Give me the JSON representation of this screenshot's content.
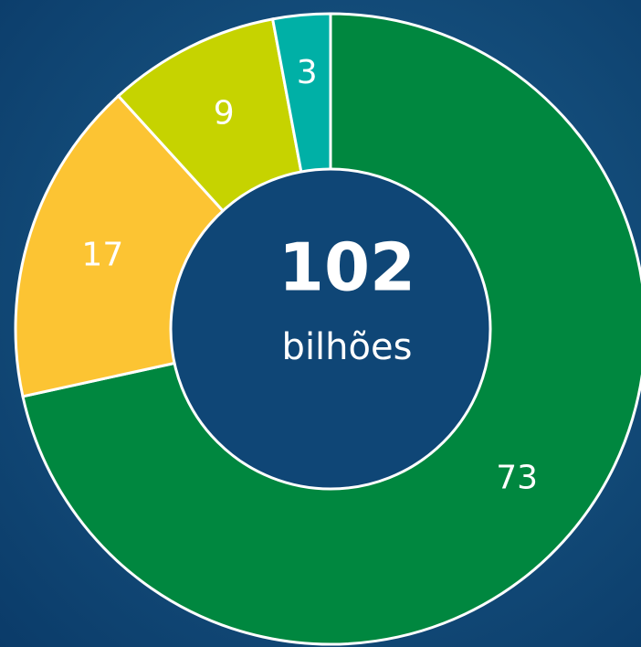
{
  "chart_data": {
    "type": "donut",
    "values": [
      73,
      17,
      9,
      3
    ],
    "colors": [
      "#00873f",
      "#fcc433",
      "#c6d300",
      "#00b0a6"
    ],
    "total": 102,
    "total_label": "bilhões"
  }
}
